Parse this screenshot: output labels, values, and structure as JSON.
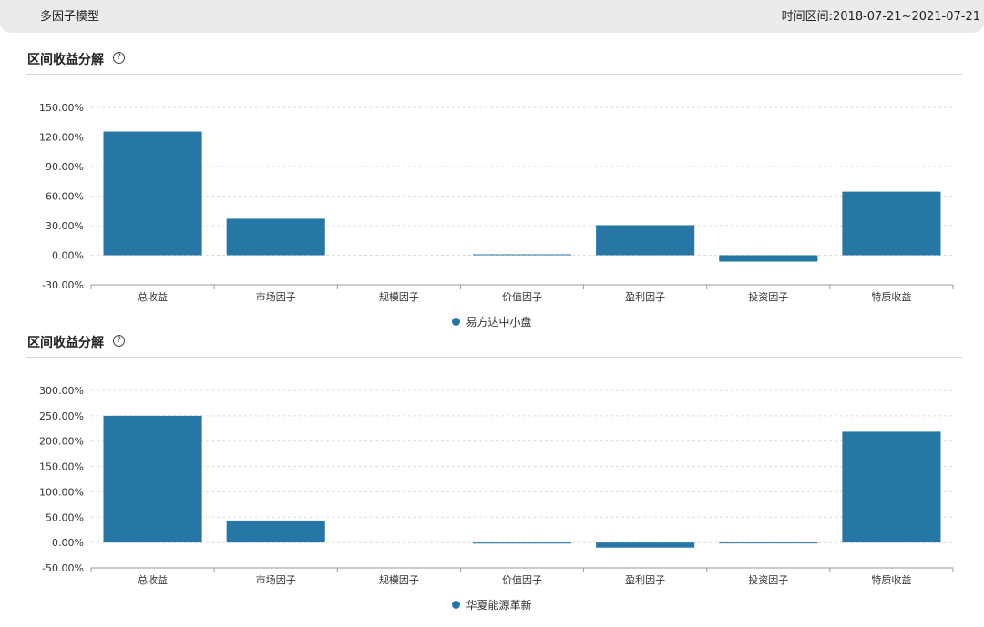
{
  "header": {
    "app_title": "多因子模型",
    "date_range": "时间区间:2018-07-21~2021-07-21"
  },
  "colors": {
    "bar": "#2777a6",
    "grid": "#dcdcdc",
    "axis": "#999999"
  },
  "sections": [
    {
      "title": "区间收益分解",
      "help_icon": "question-circle-icon"
    },
    {
      "title": "区间收益分解",
      "help_icon": "question-circle-icon"
    }
  ],
  "chart_data": [
    {
      "type": "bar",
      "categories": [
        "总收益",
        "市场因子",
        "规模因子",
        "价值因子",
        "盈利因子",
        "投资因子",
        "特质收益"
      ],
      "series": [
        {
          "name": "易方达中小盘",
          "values": [
            125.5,
            37.0,
            0.0,
            0.8,
            30.5,
            -6.5,
            64.5
          ]
        }
      ],
      "yticks": [
        "-30.00%",
        "0.00%",
        "30.00%",
        "60.00%",
        "90.00%",
        "120.00%",
        "150.00%"
      ],
      "ylim": [
        -30,
        150
      ],
      "grid": true,
      "legend_position": "bottom"
    },
    {
      "type": "bar",
      "categories": [
        "总收益",
        "市场因子",
        "规模因子",
        "价值因子",
        "盈利因子",
        "投资因子",
        "特质收益"
      ],
      "series": [
        {
          "name": "华夏能源革新",
          "values": [
            250.0,
            43.5,
            0.0,
            -2.0,
            -10.0,
            -0.8,
            218.5
          ]
        }
      ],
      "yticks": [
        "-50.00%",
        "0.00%",
        "50.00%",
        "100.00%",
        "150.00%",
        "200.00%",
        "250.00%",
        "300.00%"
      ],
      "ylim": [
        -50,
        300
      ],
      "grid": true,
      "legend_position": "bottom"
    }
  ]
}
